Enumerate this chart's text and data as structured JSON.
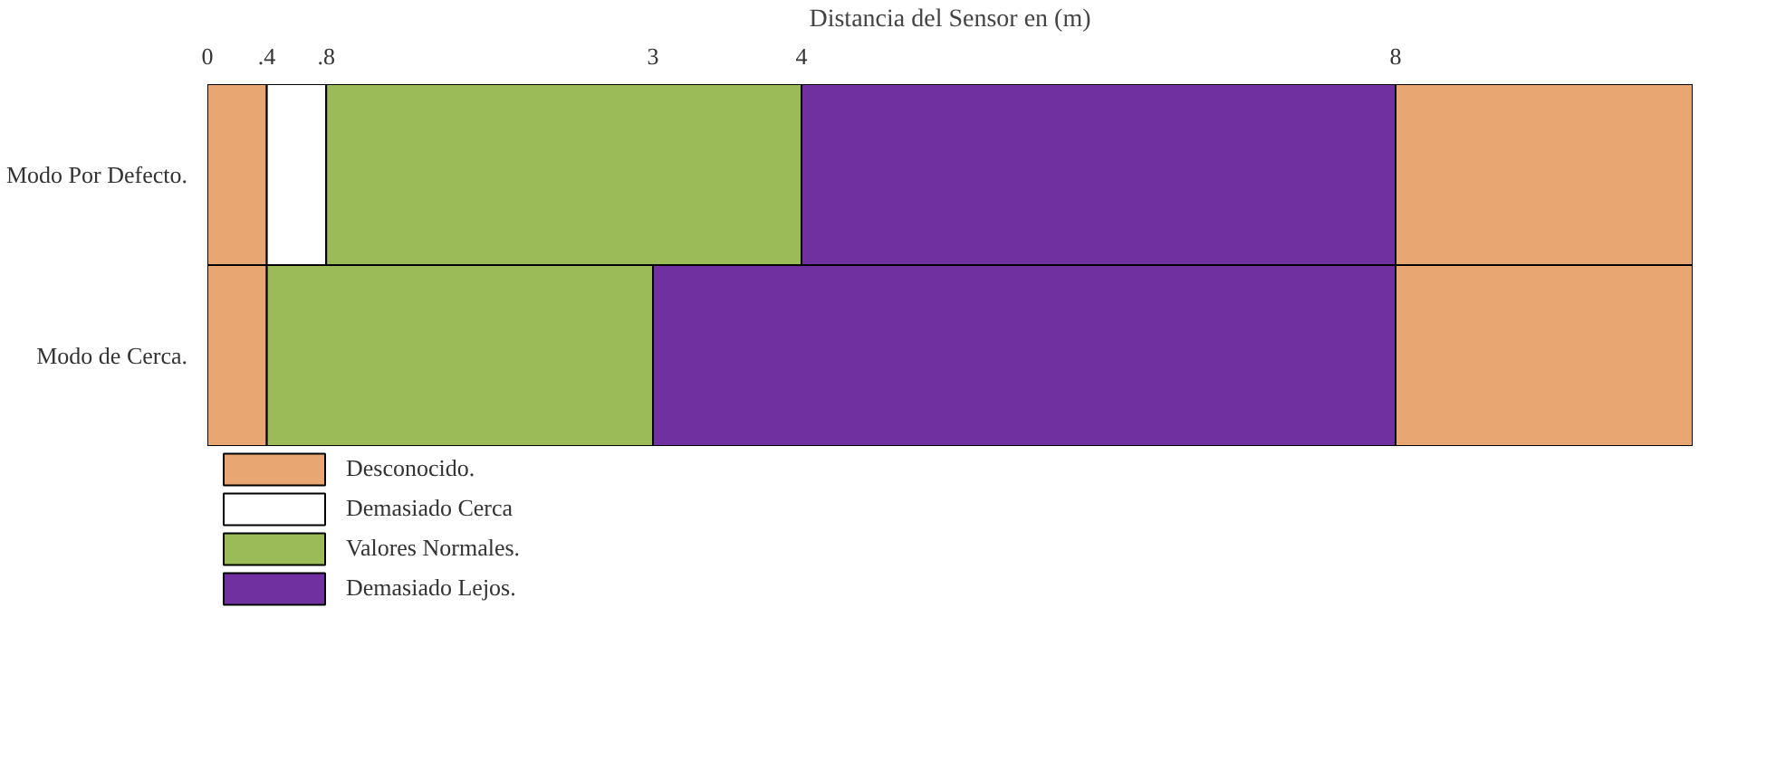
{
  "chart_data": {
    "type": "bar",
    "orientation": "horizontal",
    "stacked": true,
    "xlabel": "Distancia del Sensor en (m)",
    "categories": [
      "Modo Por Defecto.",
      "Modo de Cerca."
    ],
    "xlim": [
      0,
      10
    ],
    "xticks": [
      0,
      {
        "value": 0.4,
        "label": ".4"
      },
      {
        "value": 0.8,
        "label": ".8"
      },
      3,
      4,
      8
    ],
    "series": [
      {
        "name": "Desconocido.",
        "color": "#e8a672",
        "values": [
          0.4,
          0.4
        ]
      },
      {
        "name": "Demasiado Cerca",
        "color": "#ffffff",
        "values": [
          0.4,
          null
        ]
      },
      {
        "name": "Valores Normales.",
        "color": "#9bbb59",
        "values": [
          3.2,
          2.6
        ]
      },
      {
        "name": "Demasiado Lejos.",
        "color": "#7030a0",
        "values": [
          4,
          5
        ]
      },
      {
        "color": "#e8a672",
        "values": [
          2,
          2
        ]
      }
    ],
    "legend": "bottom"
  }
}
